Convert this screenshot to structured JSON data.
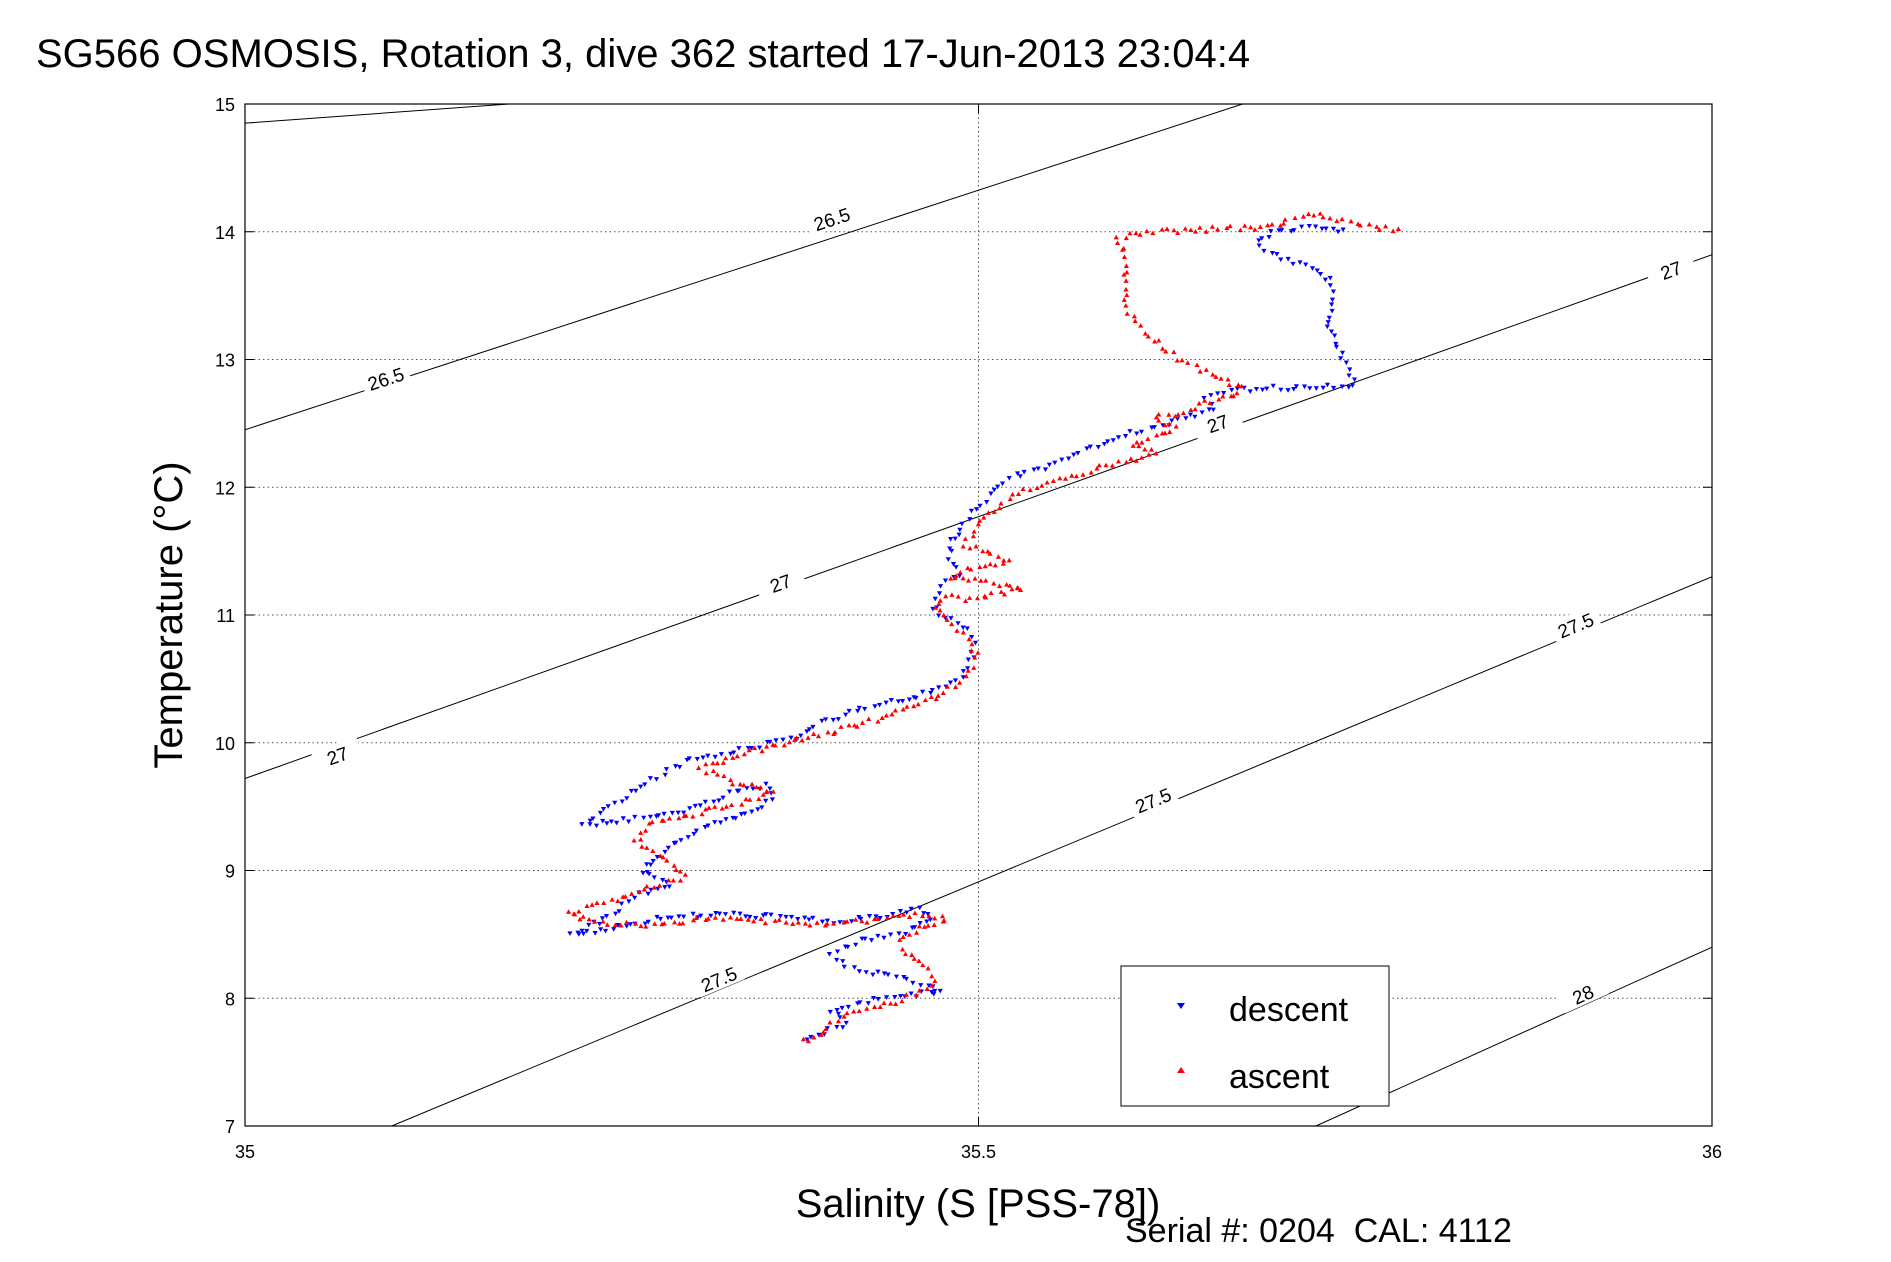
{
  "chart_data": {
    "type": "scatter",
    "title": "SG566 OSMOSIS, Rotation 3, dive 362 started 17-Jun-2013 23:04:4",
    "xlabel": "Salinity (S [PSS-78])",
    "ylabel": "Temperature (°C)",
    "xlim": [
      35,
      36
    ],
    "ylim": [
      7,
      15
    ],
    "x_ticks": [
      35,
      35.5,
      36
    ],
    "x_tick_labels": [
      "35",
      "35.5",
      "36"
    ],
    "y_ticks": [
      7,
      8,
      9,
      10,
      11,
      12,
      13,
      14,
      15
    ],
    "y_tick_labels": [
      "7",
      "8",
      "9",
      "10",
      "11",
      "12",
      "13",
      "14",
      "15"
    ],
    "grid": true,
    "legend_position": "bottom-right",
    "footer": "Serial #: 0204  CAL: 4112",
    "density_contours": [
      {
        "sigma": "26.5",
        "points": [
          [
            35.0,
            14.85
          ],
          [
            35.18,
            15.0
          ]
        ]
      },
      {
        "sigma": "26.5",
        "points": [
          [
            35.0,
            12.45
          ],
          [
            35.68,
            15.0
          ]
        ]
      },
      {
        "sigma": "27",
        "points": [
          [
            35.0,
            9.72
          ],
          [
            36.0,
            13.82
          ]
        ]
      },
      {
        "sigma": "27.5",
        "points": [
          [
            35.1,
            7.0
          ],
          [
            36.0,
            11.3
          ]
        ]
      },
      {
        "sigma": "28",
        "points": [
          [
            35.73,
            7.0
          ],
          [
            36.0,
            8.4
          ]
        ]
      }
    ],
    "contour_labels": [
      {
        "text": "26.5",
        "x": 35.4,
        "y": 14.1
      },
      {
        "text": "26.5",
        "x": 35.096,
        "y": 12.85
      },
      {
        "text": "27",
        "x": 35.063,
        "y": 9.9
      },
      {
        "text": "27",
        "x": 35.365,
        "y": 11.25
      },
      {
        "text": "27",
        "x": 35.663,
        "y": 12.5
      },
      {
        "text": "27",
        "x": 35.972,
        "y": 13.7
      },
      {
        "text": "27.5",
        "x": 35.323,
        "y": 8.15
      },
      {
        "text": "27.5",
        "x": 35.619,
        "y": 9.55
      },
      {
        "text": "27.5",
        "x": 35.907,
        "y": 10.92
      },
      {
        "text": "28",
        "x": 35.912,
        "y": 8.03
      }
    ],
    "series": [
      {
        "name": "descent",
        "color": "#0000ff",
        "marker": "triangle-down",
        "path": [
          [
            35.748,
            14.01
          ],
          [
            35.738,
            14.04
          ],
          [
            35.72,
            14.03
          ],
          [
            35.7,
            14.0
          ],
          [
            35.69,
            13.92
          ],
          [
            35.695,
            13.85
          ],
          [
            35.71,
            13.78
          ],
          [
            35.727,
            13.71
          ],
          [
            35.74,
            13.62
          ],
          [
            35.742,
            13.46
          ],
          [
            35.738,
            13.3
          ],
          [
            35.745,
            13.1
          ],
          [
            35.752,
            12.93
          ],
          [
            35.756,
            12.8
          ],
          [
            35.71,
            12.78
          ],
          [
            35.672,
            12.76
          ],
          [
            35.655,
            12.7
          ],
          [
            35.66,
            12.62
          ],
          [
            35.645,
            12.55
          ],
          [
            35.625,
            12.48
          ],
          [
            35.6,
            12.42
          ],
          [
            35.585,
            12.34
          ],
          [
            35.565,
            12.25
          ],
          [
            35.548,
            12.17
          ],
          [
            35.525,
            12.09
          ],
          [
            35.51,
            12.0
          ],
          [
            35.505,
            11.9
          ],
          [
            35.495,
            11.8
          ],
          [
            35.488,
            11.68
          ],
          [
            35.482,
            11.58
          ],
          [
            35.48,
            11.45
          ],
          [
            35.486,
            11.32
          ],
          [
            35.475,
            11.22
          ],
          [
            35.472,
            11.12
          ],
          [
            35.47,
            11.03
          ],
          [
            35.481,
            10.96
          ],
          [
            35.493,
            10.88
          ],
          [
            35.497,
            10.78
          ],
          [
            35.496,
            10.68
          ],
          [
            35.488,
            10.52
          ],
          [
            35.47,
            10.4
          ],
          [
            35.44,
            10.32
          ],
          [
            35.42,
            10.26
          ],
          [
            35.4,
            10.19
          ],
          [
            35.385,
            10.12
          ],
          [
            35.38,
            10.04
          ],
          [
            35.355,
            9.99
          ],
          [
            35.33,
            9.92
          ],
          [
            35.3,
            9.85
          ],
          [
            35.285,
            9.76
          ],
          [
            35.273,
            9.68
          ],
          [
            35.26,
            9.58
          ],
          [
            35.245,
            9.48
          ],
          [
            35.23,
            9.36
          ],
          [
            35.275,
            9.41
          ],
          [
            35.31,
            9.5
          ],
          [
            35.33,
            9.6
          ],
          [
            35.355,
            9.66
          ],
          [
            35.36,
            9.55
          ],
          [
            35.335,
            9.42
          ],
          [
            35.305,
            9.3
          ],
          [
            35.285,
            9.15
          ],
          [
            35.27,
            9.0
          ],
          [
            35.29,
            8.88
          ],
          [
            35.265,
            8.8
          ],
          [
            35.255,
            8.7
          ],
          [
            35.24,
            8.6
          ],
          [
            35.222,
            8.5
          ],
          [
            35.25,
            8.55
          ],
          [
            35.28,
            8.62
          ],
          [
            35.32,
            8.66
          ],
          [
            35.36,
            8.64
          ],
          [
            35.4,
            8.6
          ],
          [
            35.43,
            8.63
          ],
          [
            35.46,
            8.7
          ],
          [
            35.468,
            8.62
          ],
          [
            35.45,
            8.52
          ],
          [
            35.42,
            8.45
          ],
          [
            35.4,
            8.35
          ],
          [
            35.41,
            8.24
          ],
          [
            35.44,
            8.17
          ],
          [
            35.465,
            8.1
          ],
          [
            35.475,
            8.05
          ],
          [
            35.45,
            8.02
          ],
          [
            35.42,
            7.97
          ],
          [
            35.4,
            7.9
          ],
          [
            35.41,
            7.8
          ],
          [
            35.39,
            7.72
          ],
          [
            35.38,
            7.67
          ]
        ]
      },
      {
        "name": "ascent",
        "color": "#ff0000",
        "marker": "triangle-up",
        "path": [
          [
            35.38,
            7.66
          ],
          [
            35.395,
            7.72
          ],
          [
            35.4,
            7.82
          ],
          [
            35.42,
            7.9
          ],
          [
            35.445,
            7.97
          ],
          [
            35.46,
            8.05
          ],
          [
            35.47,
            8.15
          ],
          [
            35.462,
            8.25
          ],
          [
            35.45,
            8.35
          ],
          [
            35.445,
            8.45
          ],
          [
            35.46,
            8.55
          ],
          [
            35.478,
            8.62
          ],
          [
            35.45,
            8.66
          ],
          [
            35.42,
            8.6
          ],
          [
            35.39,
            8.58
          ],
          [
            35.36,
            8.6
          ],
          [
            35.33,
            8.63
          ],
          [
            35.3,
            8.6
          ],
          [
            35.27,
            8.57
          ],
          [
            35.24,
            8.6
          ],
          [
            35.22,
            8.66
          ],
          [
            35.245,
            8.75
          ],
          [
            35.275,
            8.86
          ],
          [
            35.3,
            8.95
          ],
          [
            35.285,
            9.1
          ],
          [
            35.265,
            9.25
          ],
          [
            35.275,
            9.36
          ],
          [
            35.31,
            9.45
          ],
          [
            35.345,
            9.55
          ],
          [
            35.36,
            9.62
          ],
          [
            35.33,
            9.7
          ],
          [
            35.31,
            9.8
          ],
          [
            35.34,
            9.92
          ],
          [
            35.37,
            10.0
          ],
          [
            35.4,
            10.08
          ],
          [
            35.43,
            10.18
          ],
          [
            35.46,
            10.3
          ],
          [
            35.48,
            10.42
          ],
          [
            35.494,
            10.55
          ],
          [
            35.498,
            10.7
          ],
          [
            35.492,
            10.82
          ],
          [
            35.483,
            10.93
          ],
          [
            35.47,
            11.05
          ],
          [
            35.478,
            11.15
          ],
          [
            35.495,
            11.12
          ],
          [
            35.51,
            11.16
          ],
          [
            35.53,
            11.2
          ],
          [
            35.48,
            11.3
          ],
          [
            35.5,
            11.38
          ],
          [
            35.52,
            11.42
          ],
          [
            35.49,
            11.55
          ],
          [
            35.5,
            11.7
          ],
          [
            35.51,
            11.82
          ],
          [
            35.52,
            11.9
          ],
          [
            35.53,
            11.98
          ],
          [
            35.555,
            12.06
          ],
          [
            35.58,
            12.14
          ],
          [
            35.6,
            12.2
          ],
          [
            35.62,
            12.26
          ],
          [
            35.605,
            12.32
          ],
          [
            35.62,
            12.4
          ],
          [
            35.635,
            12.46
          ],
          [
            35.62,
            12.54
          ],
          [
            35.645,
            12.6
          ],
          [
            35.655,
            12.66
          ],
          [
            35.675,
            12.72
          ],
          [
            35.68,
            12.78
          ],
          [
            35.665,
            12.84
          ],
          [
            35.655,
            12.9
          ],
          [
            35.64,
            12.98
          ],
          [
            35.625,
            13.1
          ],
          [
            35.61,
            13.25
          ],
          [
            35.6,
            13.42
          ],
          [
            35.6,
            13.6
          ],
          [
            35.6,
            13.8
          ],
          [
            35.595,
            13.96
          ],
          [
            35.62,
            14.0
          ],
          [
            35.66,
            14.02
          ],
          [
            35.69,
            14.03
          ],
          [
            35.705,
            14.06
          ],
          [
            35.71,
            14.1
          ],
          [
            35.72,
            14.12
          ],
          [
            35.727,
            14.14
          ],
          [
            35.74,
            14.1
          ],
          [
            35.77,
            14.04
          ],
          [
            35.79,
            14.0
          ]
        ]
      }
    ]
  }
}
